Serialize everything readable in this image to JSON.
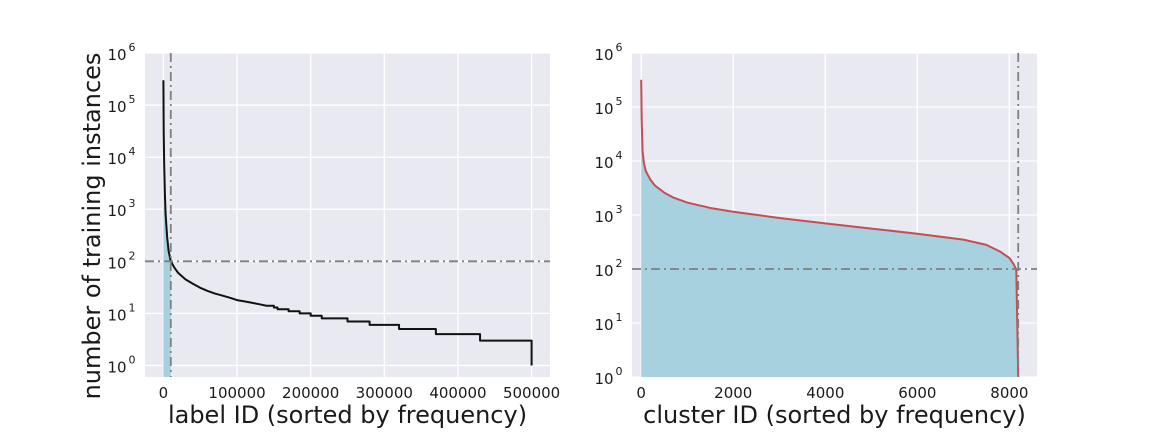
{
  "chart_data": [
    {
      "type": "line",
      "xlabel": "label ID (sorted by frequency)",
      "ylabel": "number of training instances",
      "yscale": "log",
      "xlim": [
        -25000,
        525000
      ],
      "ylim": [
        0.6,
        1000000
      ],
      "xticks": [
        0,
        100000,
        200000,
        300000,
        400000,
        500000
      ],
      "xtick_labels": [
        "0",
        "100000",
        "200000",
        "300000",
        "400000",
        "500000"
      ],
      "yticks": [
        1,
        10,
        100,
        1000,
        10000,
        100000,
        1000000
      ],
      "ytick_labels": [
        {
          "base": "10",
          "exp": "0"
        },
        {
          "base": "10",
          "exp": "1"
        },
        {
          "base": "10",
          "exp": "2"
        },
        {
          "base": "10",
          "exp": "3"
        },
        {
          "base": "10",
          "exp": "4"
        },
        {
          "base": "10",
          "exp": "5"
        },
        {
          "base": "10",
          "exp": "6"
        }
      ],
      "grid": true,
      "colors": {
        "line": "#111111",
        "fill": "#a7d1de",
        "ref_line": "#7f7f7f"
      },
      "hline_y": 100,
      "vline_x": 10000,
      "fill_x_max": 10000,
      "series": [
        {
          "x": [
            0,
            400,
            1000,
            2000,
            3000,
            5000,
            7000,
            10000,
            15000,
            20000,
            30000,
            40000,
            50000,
            60000,
            70000,
            80000,
            90000,
            100000,
            110000,
            120000,
            130000,
            140000,
            150000,
            155000,
            170000,
            185000,
            200000,
            215000,
            250000,
            280000,
            320000,
            370000,
            430000,
            500000,
            500000
          ],
          "y": [
            300000,
            30000,
            8000,
            2000,
            800,
            300,
            160,
            100,
            75,
            60,
            45,
            37,
            31,
            27,
            24,
            22,
            20,
            18,
            17,
            16,
            15,
            14,
            13,
            12,
            11,
            10,
            9,
            8,
            7,
            6,
            5,
            4,
            3,
            2,
            1
          ]
        }
      ]
    },
    {
      "type": "line",
      "xlabel": "cluster ID (sorted by frequency)",
      "ylabel": "",
      "yscale": "log",
      "xlim": [
        -200,
        8600
      ],
      "ylim": [
        1,
        1000000
      ],
      "xticks": [
        0,
        2000,
        4000,
        6000,
        8000
      ],
      "xtick_labels": [
        "0",
        "2000",
        "4000",
        "6000",
        "8000"
      ],
      "yticks": [
        1,
        10,
        100,
        1000,
        10000,
        100000,
        1000000
      ],
      "ytick_labels": [
        {
          "base": "10",
          "exp": "0"
        },
        {
          "base": "10",
          "exp": "1"
        },
        {
          "base": "10",
          "exp": "2"
        },
        {
          "base": "10",
          "exp": "3"
        },
        {
          "base": "10",
          "exp": "4"
        },
        {
          "base": "10",
          "exp": "5"
        },
        {
          "base": "10",
          "exp": "6"
        }
      ],
      "grid": true,
      "colors": {
        "line": "#c44e52",
        "fill": "#a7d1de",
        "ref_line": "#7f7f7f"
      },
      "hline_y": 100,
      "vline_x": 8192,
      "fill_x_max": 8192,
      "series": [
        {
          "x": [
            0,
            10,
            30,
            60,
            100,
            200,
            300,
            500,
            700,
            1000,
            1500,
            2000,
            3000,
            4000,
            5000,
            6000,
            7000,
            7500,
            7800,
            8000,
            8100,
            8150,
            8192
          ],
          "y": [
            320000,
            60000,
            15000,
            9000,
            6500,
            4500,
            3500,
            2600,
            2100,
            1700,
            1350,
            1150,
            880,
            700,
            560,
            450,
            350,
            280,
            210,
            160,
            120,
            95,
            1
          ]
        }
      ]
    }
  ]
}
